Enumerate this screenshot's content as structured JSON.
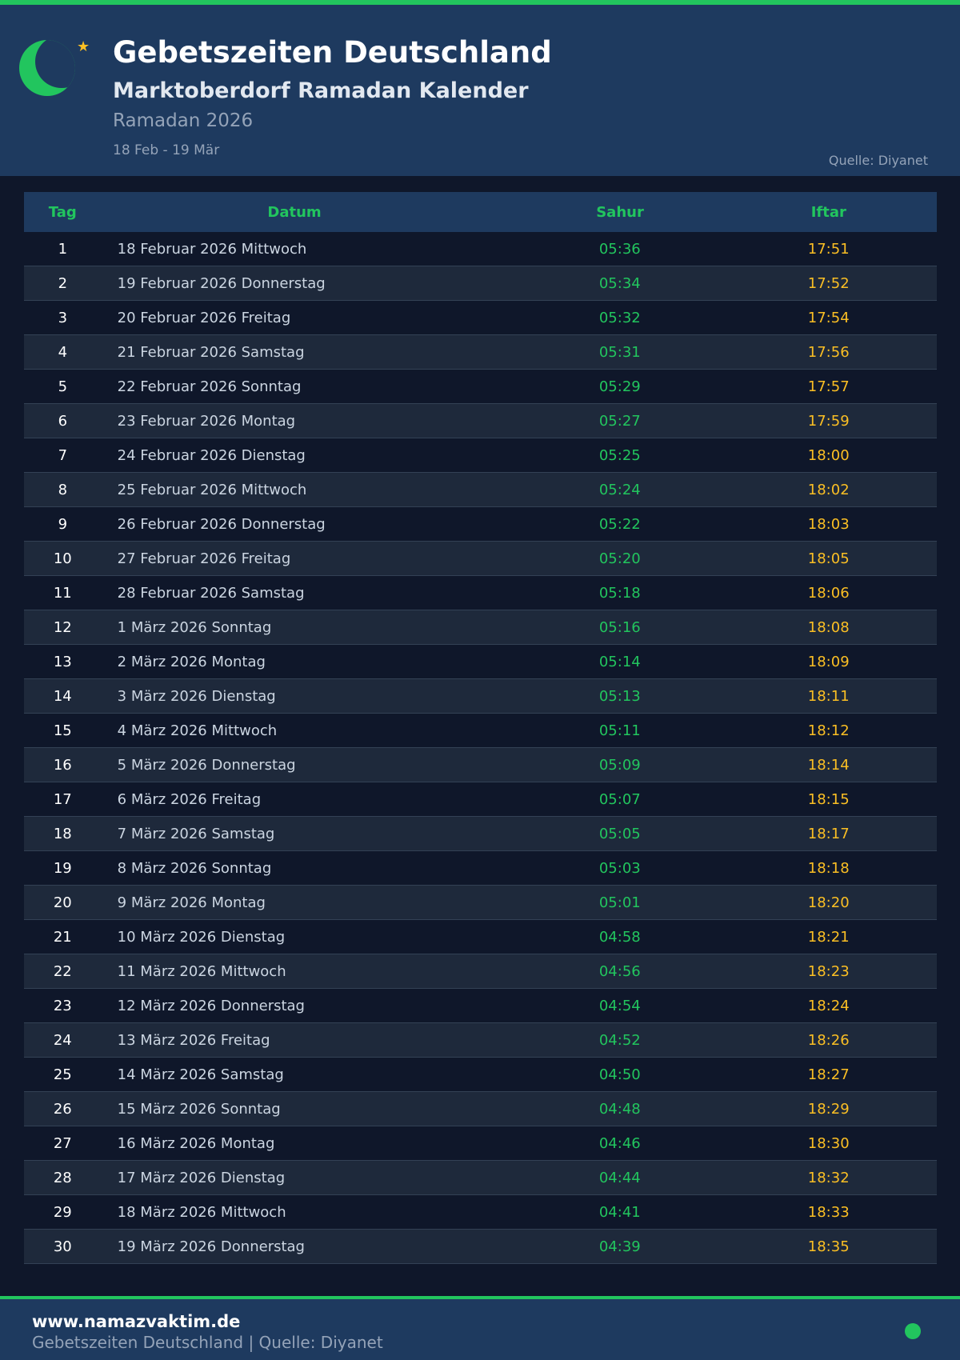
{
  "header": {
    "title": "Gebetszeiten Deutschland",
    "subtitle": "Marktoberdorf Ramadan Kalender",
    "period": "Ramadan 2026",
    "range": "18 Feb - 19 Mär",
    "source": "Quelle: Diyanet",
    "icons": [
      "crescent-moon-icon",
      "star-icon"
    ]
  },
  "colors": {
    "accent": "#22c55e",
    "iftar": "#fbbf24",
    "header_bg": "#1e3a5f",
    "page_bg": "#0f172a"
  },
  "table": {
    "columns": [
      "Tag",
      "Datum",
      "Sahur",
      "Iftar"
    ],
    "rows": [
      [
        "1",
        "18 Februar 2026 Mittwoch",
        "05:36",
        "17:51"
      ],
      [
        "2",
        "19 Februar 2026 Donnerstag",
        "05:34",
        "17:52"
      ],
      [
        "3",
        "20 Februar 2026 Freitag",
        "05:32",
        "17:54"
      ],
      [
        "4",
        "21 Februar 2026 Samstag",
        "05:31",
        "17:56"
      ],
      [
        "5",
        "22 Februar 2026 Sonntag",
        "05:29",
        "17:57"
      ],
      [
        "6",
        "23 Februar 2026 Montag",
        "05:27",
        "17:59"
      ],
      [
        "7",
        "24 Februar 2026 Dienstag",
        "05:25",
        "18:00"
      ],
      [
        "8",
        "25 Februar 2026 Mittwoch",
        "05:24",
        "18:02"
      ],
      [
        "9",
        "26 Februar 2026 Donnerstag",
        "05:22",
        "18:03"
      ],
      [
        "10",
        "27 Februar 2026 Freitag",
        "05:20",
        "18:05"
      ],
      [
        "11",
        "28 Februar 2026 Samstag",
        "05:18",
        "18:06"
      ],
      [
        "12",
        "1 März 2026 Sonntag",
        "05:16",
        "18:08"
      ],
      [
        "13",
        "2 März 2026 Montag",
        "05:14",
        "18:09"
      ],
      [
        "14",
        "3 März 2026 Dienstag",
        "05:13",
        "18:11"
      ],
      [
        "15",
        "4 März 2026 Mittwoch",
        "05:11",
        "18:12"
      ],
      [
        "16",
        "5 März 2026 Donnerstag",
        "05:09",
        "18:14"
      ],
      [
        "17",
        "6 März 2026 Freitag",
        "05:07",
        "18:15"
      ],
      [
        "18",
        "7 März 2026 Samstag",
        "05:05",
        "18:17"
      ],
      [
        "19",
        "8 März 2026 Sonntag",
        "05:03",
        "18:18"
      ],
      [
        "20",
        "9 März 2026 Montag",
        "05:01",
        "18:20"
      ],
      [
        "21",
        "10 März 2026 Dienstag",
        "04:58",
        "18:21"
      ],
      [
        "22",
        "11 März 2026 Mittwoch",
        "04:56",
        "18:23"
      ],
      [
        "23",
        "12 März 2026 Donnerstag",
        "04:54",
        "18:24"
      ],
      [
        "24",
        "13 März 2026 Freitag",
        "04:52",
        "18:26"
      ],
      [
        "25",
        "14 März 2026 Samstag",
        "04:50",
        "18:27"
      ],
      [
        "26",
        "15 März 2026 Sonntag",
        "04:48",
        "18:29"
      ],
      [
        "27",
        "16 März 2026 Montag",
        "04:46",
        "18:30"
      ],
      [
        "28",
        "17 März 2026 Dienstag",
        "04:44",
        "18:32"
      ],
      [
        "29",
        "18 März 2026 Mittwoch",
        "04:41",
        "18:33"
      ],
      [
        "30",
        "19 März 2026 Donnerstag",
        "04:39",
        "18:35"
      ]
    ]
  },
  "footer": {
    "url": "www.namazvaktim.de",
    "text": "Gebetszeiten Deutschland | Quelle: Diyanet"
  }
}
